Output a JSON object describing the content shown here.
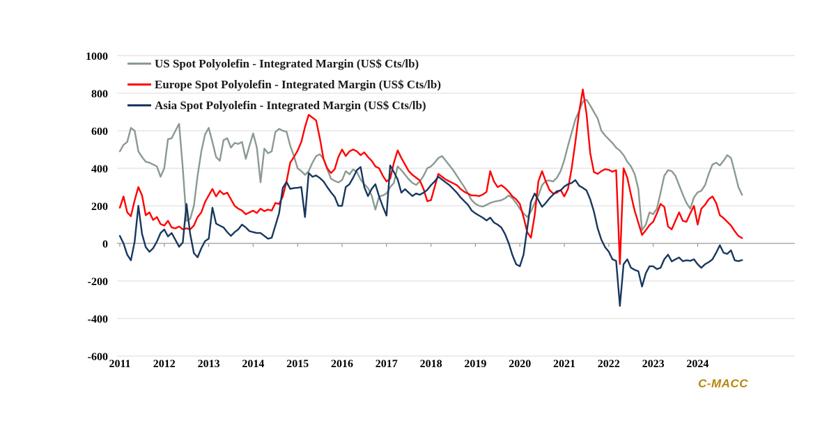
{
  "brand": "C-MACC",
  "brand_color": "#B8860B",
  "colors": {
    "background": "#ffffff",
    "gridline": "#d9d9d9",
    "zero_axis": "#9a9a9a",
    "tick_text": "#000000"
  },
  "chart_data": {
    "type": "line",
    "title": "",
    "xlabel": "",
    "ylabel": "US$ Cts/lb",
    "ylim": [
      -600,
      1000
    ],
    "grid": "horizontal",
    "legend_position": "top-left",
    "yticks": [
      "1000",
      "800",
      "600",
      "400",
      "200",
      "0",
      "-200",
      "-400",
      "-600"
    ],
    "ytick_values": [
      1000,
      800,
      600,
      400,
      200,
      0,
      -200,
      -400,
      -600
    ],
    "xticks": [
      "2011",
      "2012",
      "2013",
      "2014",
      "2015",
      "2016",
      "2017",
      "2018",
      "2019",
      "2020",
      "2021",
      "2022",
      "2023",
      "2024"
    ],
    "xtick_values": [
      2011,
      2012,
      2013,
      2014,
      2015,
      2016,
      2017,
      2018,
      2019,
      2020,
      2021,
      2022,
      2023,
      2024
    ],
    "x_start_year": 2011,
    "x_points_per_year": 12,
    "series": [
      {
        "name": "US Spot Polyolefin - Integrated Margin (US$ Cts/lb)",
        "color": "#8A9A90",
        "values": [
          490,
          525,
          540,
          615,
          600,
          490,
          460,
          435,
          430,
          420,
          410,
          355,
          400,
          555,
          560,
          600,
          637,
          400,
          120,
          130,
          200,
          360,
          490,
          580,
          615,
          540,
          460,
          440,
          550,
          560,
          510,
          535,
          530,
          540,
          450,
          520,
          586,
          510,
          325,
          505,
          480,
          490,
          593,
          610,
          600,
          595,
          520,
          465,
          400,
          385,
          365,
          385,
          430,
          465,
          475,
          450,
          395,
          345,
          333,
          325,
          337,
          385,
          368,
          394,
          380,
          340,
          315,
          295,
          255,
          180,
          250,
          255,
          266,
          300,
          322,
          410,
          390,
          366,
          341,
          322,
          311,
          330,
          360,
          400,
          410,
          430,
          455,
          465,
          440,
          415,
          390,
          360,
          330,
          300,
          265,
          230,
          211,
          200,
          196,
          205,
          215,
          222,
          226,
          230,
          240,
          255,
          240,
          215,
          185,
          160,
          140,
          170,
          215,
          255,
          310,
          333,
          335,
          330,
          350,
          385,
          444,
          520,
          590,
          660,
          705,
          755,
          765,
          735,
          700,
          665,
          600,
          575,
          555,
          535,
          510,
          494,
          470,
          435,
          410,
          370,
          290,
          70,
          100,
          165,
          155,
          185,
          270,
          360,
          390,
          385,
          360,
          310,
          260,
          215,
          185,
          245,
          272,
          280,
          310,
          370,
          420,
          430,
          415,
          440,
          470,
          455,
          380,
          300,
          258
        ]
      },
      {
        "name": "Europe Spot Polyolefin - Integrated Margin (US$ Cts/lb)",
        "color": "#FF0000",
        "values": [
          190,
          250,
          165,
          145,
          230,
          300,
          255,
          150,
          165,
          125,
          140,
          103,
          95,
          120,
          85,
          80,
          90,
          75,
          80,
          75,
          95,
          140,
          165,
          220,
          255,
          290,
          250,
          280,
          262,
          270,
          235,
          200,
          185,
          175,
          155,
          165,
          174,
          162,
          185,
          172,
          180,
          175,
          215,
          210,
          250,
          330,
          430,
          460,
          494,
          540,
          620,
          685,
          670,
          655,
          560,
          450,
          400,
          375,
          395,
          460,
          500,
          465,
          490,
          500,
          490,
          470,
          485,
          460,
          440,
          410,
          400,
          360,
          330,
          345,
          430,
          495,
          455,
          420,
          385,
          365,
          350,
          335,
          290,
          225,
          230,
          300,
          370,
          355,
          340,
          330,
          320,
          310,
          290,
          275,
          265,
          255,
          255,
          252,
          260,
          275,
          385,
          330,
          300,
          310,
          295,
          275,
          250,
          235,
          210,
          140,
          60,
          30,
          150,
          330,
          385,
          330,
          285,
          265,
          270,
          285,
          250,
          290,
          400,
          540,
          700,
          820,
          690,
          480,
          380,
          370,
          385,
          395,
          392,
          382,
          390,
          -110,
          400,
          350,
          259,
          174,
          110,
          45,
          70,
          97,
          115,
          160,
          210,
          195,
          90,
          75,
          120,
          165,
          120,
          115,
          160,
          200,
          100,
          185,
          205,
          235,
          250,
          215,
          150,
          135,
          115,
          95,
          65,
          40,
          28
        ]
      },
      {
        "name": "Asia Spot Polyolefin - Integrated Margin (US$ Cts/lb)",
        "color": "#17375E",
        "values": [
          40,
          0,
          -60,
          -90,
          10,
          200,
          50,
          -20,
          -45,
          -26,
          10,
          55,
          74,
          37,
          55,
          19,
          -18,
          5,
          210,
          50,
          -52,
          -74,
          -26,
          12,
          25,
          190,
          105,
          95,
          85,
          60,
          40,
          60,
          75,
          100,
          85,
          65,
          60,
          55,
          55,
          40,
          25,
          30,
          95,
          160,
          296,
          327,
          290,
          295,
          296,
          300,
          140,
          375,
          355,
          362,
          348,
          330,
          300,
          272,
          248,
          200,
          200,
          300,
          315,
          350,
          390,
          407,
          300,
          252,
          290,
          315,
          250,
          196,
          148,
          415,
          380,
          341,
          270,
          289,
          270,
          252,
          266,
          259,
          270,
          285,
          310,
          330,
          355,
          340,
          325,
          310,
          290,
          270,
          245,
          225,
          205,
          175,
          160,
          148,
          137,
          122,
          137,
          111,
          100,
          85,
          50,
          0,
          -63,
          -111,
          -122,
          -60,
          80,
          222,
          266,
          230,
          195,
          215,
          240,
          260,
          278,
          282,
          303,
          315,
          322,
          337,
          307,
          296,
          282,
          235,
          170,
          80,
          20,
          -20,
          -44,
          -85,
          -93,
          -333,
          -111,
          -85,
          -130,
          -141,
          -148,
          -230,
          -159,
          -122,
          -122,
          -137,
          -130,
          -85,
          -60,
          -96,
          -85,
          -75,
          -95,
          -90,
          -93,
          -85,
          -111,
          -130,
          -111,
          -100,
          -85,
          -50,
          -10,
          -50,
          -56,
          -37,
          -90,
          -95,
          -89
        ]
      }
    ]
  }
}
